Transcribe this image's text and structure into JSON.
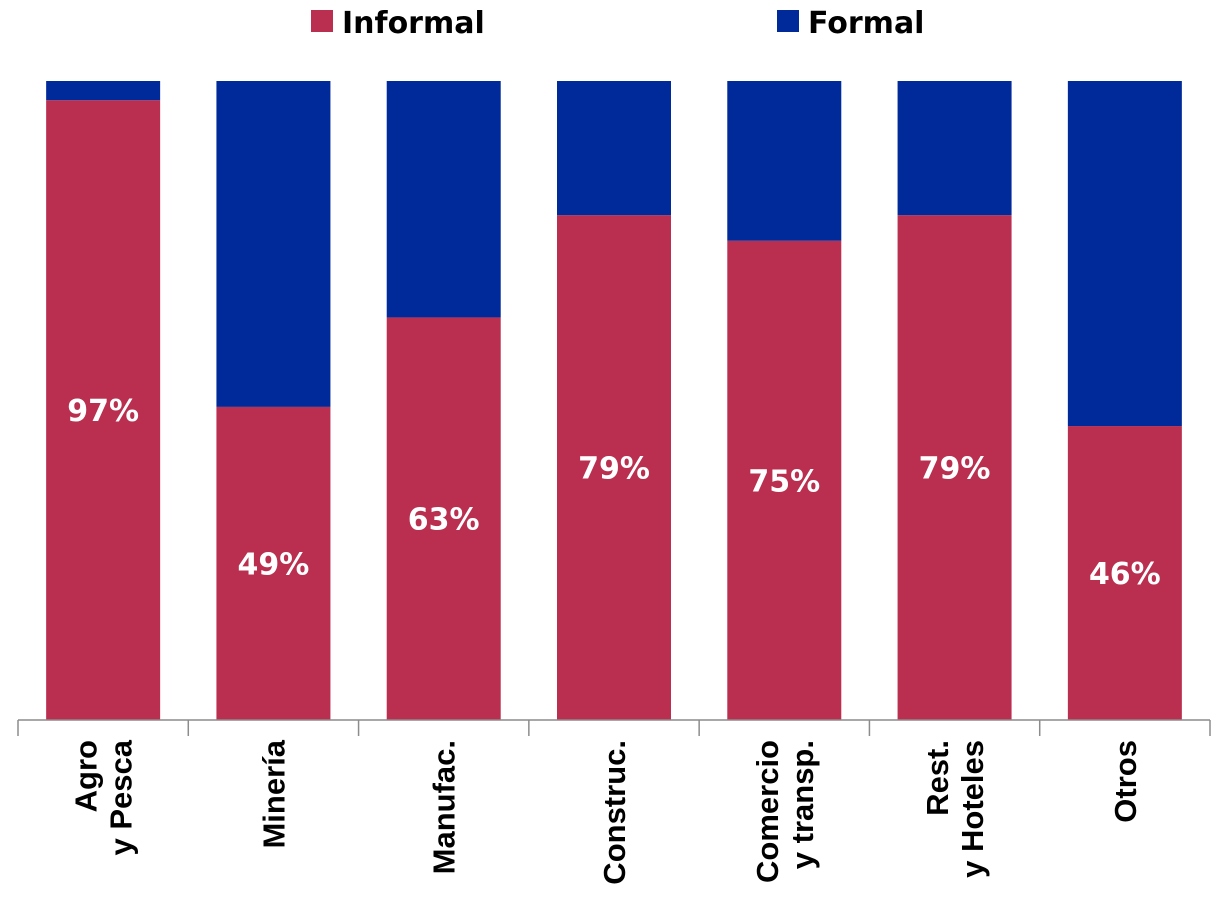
{
  "chart_data": {
    "type": "bar",
    "stacked": true,
    "normalized_100_percent": true,
    "categories": [
      [
        "Agro",
        "y Pesca"
      ],
      [
        "Minería"
      ],
      [
        "Manufac."
      ],
      [
        "Construc."
      ],
      [
        "Comercio",
        "y transp."
      ],
      [
        "Rest.",
        "y Hoteles"
      ],
      [
        "Otros"
      ]
    ],
    "series": [
      {
        "name": "Informal",
        "color": "#BA2F4F",
        "values": [
          97,
          49,
          63,
          79,
          75,
          79,
          46
        ]
      },
      {
        "name": "Formal",
        "color": "#00299A",
        "values": [
          3,
          51,
          37,
          21,
          25,
          21,
          54
        ]
      }
    ],
    "data_labels": [
      "97%",
      "49%",
      "63%",
      "79%",
      "75%",
      "79%",
      "46%"
    ],
    "ylim": [
      0,
      100
    ],
    "legend_position": "top",
    "grid": false
  }
}
